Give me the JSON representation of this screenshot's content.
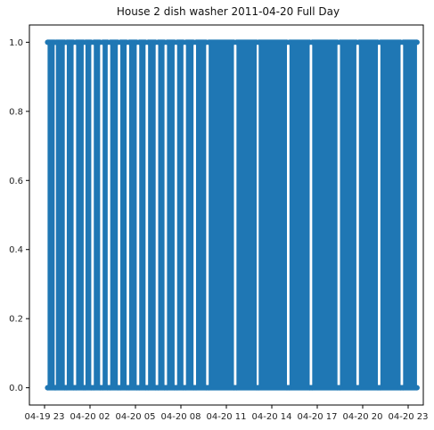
{
  "chart_data": {
    "type": "line",
    "title": "House 2 dish washer 2011-04-20 Full Day",
    "xlabel": "",
    "ylabel": "",
    "x_axis": "datetime",
    "xlim": [
      "2011-04-19 22:00",
      "2011-04-21 00:00"
    ],
    "ylim": [
      -0.05,
      1.05
    ],
    "x_tick_labels": [
      "04-19 23",
      "04-20 02",
      "04-20 05",
      "04-20 08",
      "04-20 11",
      "04-20 14",
      "04-20 17",
      "04-20 20",
      "04-20 23"
    ],
    "x_tick_values": [
      "2011-04-19 23:00",
      "2011-04-20 02:00",
      "2011-04-20 05:00",
      "2011-04-20 08:00",
      "2011-04-20 11:00",
      "2011-04-20 14:00",
      "2011-04-20 17:00",
      "2011-04-20 20:00",
      "2011-04-20 23:00"
    ],
    "y_ticks": [
      0.0,
      0.2,
      0.4,
      0.6,
      0.8,
      1.0
    ],
    "y_tick_labels": [
      "0.0",
      "0.2",
      "0.4",
      "0.6",
      "0.8",
      "1.0"
    ],
    "marker": "circle",
    "line_color": "#1f77b4",
    "grid": false,
    "series": [
      {
        "values_pattern": "binary on/off switching between 0 and 1",
        "x_start": "2011-04-19 23:10",
        "x_end": "2011-04-20 23:35",
        "on_segments": [
          [
            "2011-04-19 23:12",
            "2011-04-19 23:40"
          ],
          [
            "2011-04-19 23:45",
            "2011-04-20 00:20"
          ],
          [
            "2011-04-20 00:28",
            "2011-04-20 00:55"
          ],
          [
            "2011-04-20 01:05",
            "2011-04-20 01:35"
          ],
          [
            "2011-04-20 01:42",
            "2011-04-20 02:05"
          ],
          [
            "2011-04-20 02:15",
            "2011-04-20 02:40"
          ],
          [
            "2011-04-20 02:50",
            "2011-04-20 03:10"
          ],
          [
            "2011-04-20 03:20",
            "2011-04-20 03:50"
          ],
          [
            "2011-04-20 04:00",
            "2011-04-20 04:25"
          ],
          [
            "2011-04-20 04:35",
            "2011-04-20 05:05"
          ],
          [
            "2011-04-20 05:15",
            "2011-04-20 05:40"
          ],
          [
            "2011-04-20 05:50",
            "2011-04-20 06:20"
          ],
          [
            "2011-04-20 06:30",
            "2011-04-20 06:55"
          ],
          [
            "2011-04-20 07:05",
            "2011-04-20 07:35"
          ],
          [
            "2011-04-20 07:45",
            "2011-04-20 08:10"
          ],
          [
            "2011-04-20 08:20",
            "2011-04-20 08:50"
          ],
          [
            "2011-04-20 09:00",
            "2011-04-20 09:40"
          ],
          [
            "2011-04-20 09:50",
            "2011-04-20 11:30"
          ],
          [
            "2011-04-20 11:40",
            "2011-04-20 13:00"
          ],
          [
            "2011-04-20 13:08",
            "2011-04-20 15:00"
          ],
          [
            "2011-04-20 15:10",
            "2011-04-20 16:30"
          ],
          [
            "2011-04-20 16:40",
            "2011-04-20 18:20"
          ],
          [
            "2011-04-20 18:30",
            "2011-04-20 19:35"
          ],
          [
            "2011-04-20 19:45",
            "2011-04-20 21:00"
          ],
          [
            "2011-04-20 21:10",
            "2011-04-20 22:30"
          ],
          [
            "2011-04-20 22:40",
            "2011-04-20 23:35"
          ]
        ]
      }
    ]
  }
}
